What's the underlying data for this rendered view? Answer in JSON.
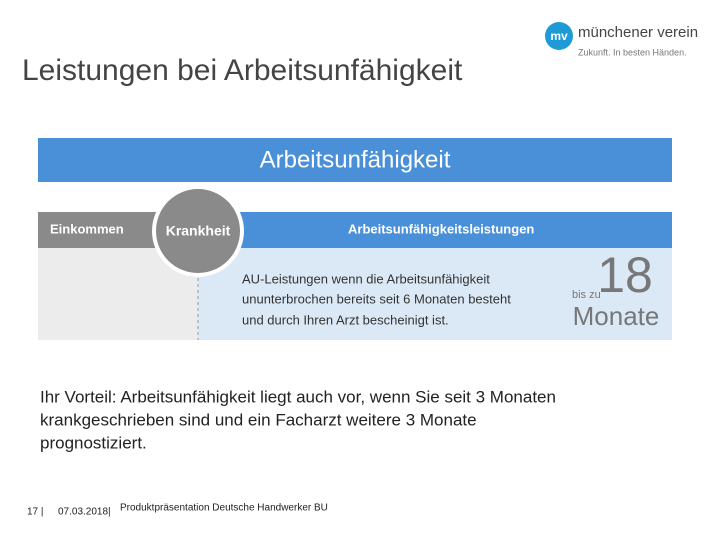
{
  "header": {
    "title": "Leistungen bei Arbeitsunfähigkeit"
  },
  "logo": {
    "mark": "mv",
    "name": "münchener verein",
    "tagline": "Zukunft. In besten Händen."
  },
  "graphic": {
    "title": "Arbeitsunfähigkeit",
    "left_label": "Einkommen",
    "circle_label": "Krankheit",
    "right_label": "Arbeitsunfähigkeitsleistungen",
    "description": [
      "AU-Leistungen wenn die Arbeitsunfähigkeit",
      "ununterbrochen bereits seit 6 Monaten besteht",
      "und durch Ihren Arzt bescheinigt ist."
    ],
    "duration": {
      "prefix": "bis zu",
      "number": "18",
      "unit": "Monate"
    }
  },
  "body": {
    "lines": [
      "Ihr Vorteil: Arbeitsunfähigkeit liegt auch vor, wenn Sie seit 3 Monaten",
      "krankgeschrieben sind und ein Facharzt weitere 3 Monate",
      "prognostiziert."
    ]
  },
  "footer": {
    "page": "17 |",
    "date": "07.03.2018|",
    "text": "Produktpräsentation Deutsche Handwerker BU"
  }
}
